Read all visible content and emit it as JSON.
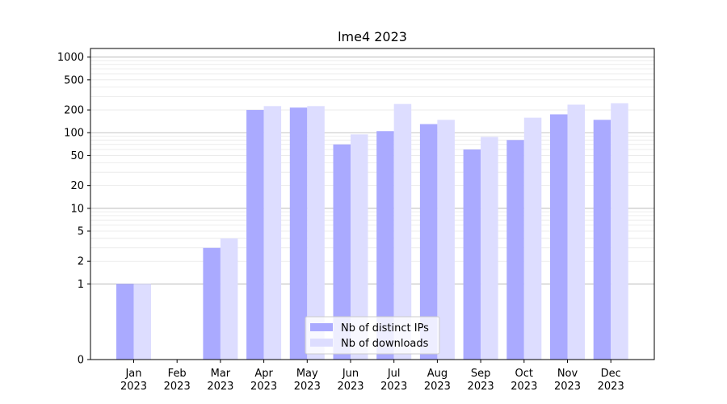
{
  "chart_data": {
    "type": "bar",
    "title": "lme4 2023",
    "xlabel": "",
    "ylabel": "",
    "y_scale": "symlog",
    "ylim": [
      0,
      1300
    ],
    "yticks": [
      0,
      1,
      2,
      5,
      10,
      20,
      50,
      100,
      200,
      500,
      1000
    ],
    "grid": "horizontal",
    "legend_position": "bottom-center",
    "categories": [
      [
        "Jan",
        "2023"
      ],
      [
        "Feb",
        "2023"
      ],
      [
        "Mar",
        "2023"
      ],
      [
        "Apr",
        "2023"
      ],
      [
        "May",
        "2023"
      ],
      [
        "Jun",
        "2023"
      ],
      [
        "Jul",
        "2023"
      ],
      [
        "Aug",
        "2023"
      ],
      [
        "Sep",
        "2023"
      ],
      [
        "Oct",
        "2023"
      ],
      [
        "Nov",
        "2023"
      ],
      [
        "Dec",
        "2023"
      ]
    ],
    "series": [
      {
        "name": "Nb of distinct IPs",
        "color": "#aaaaff",
        "values": [
          1,
          0,
          3,
          200,
          215,
          70,
          105,
          130,
          60,
          80,
          175,
          148
        ]
      },
      {
        "name": "Nb of downloads",
        "color": "#ddddff",
        "values": [
          1,
          0,
          4,
          225,
          225,
          95,
          240,
          148,
          88,
          158,
          235,
          245
        ]
      }
    ]
  }
}
